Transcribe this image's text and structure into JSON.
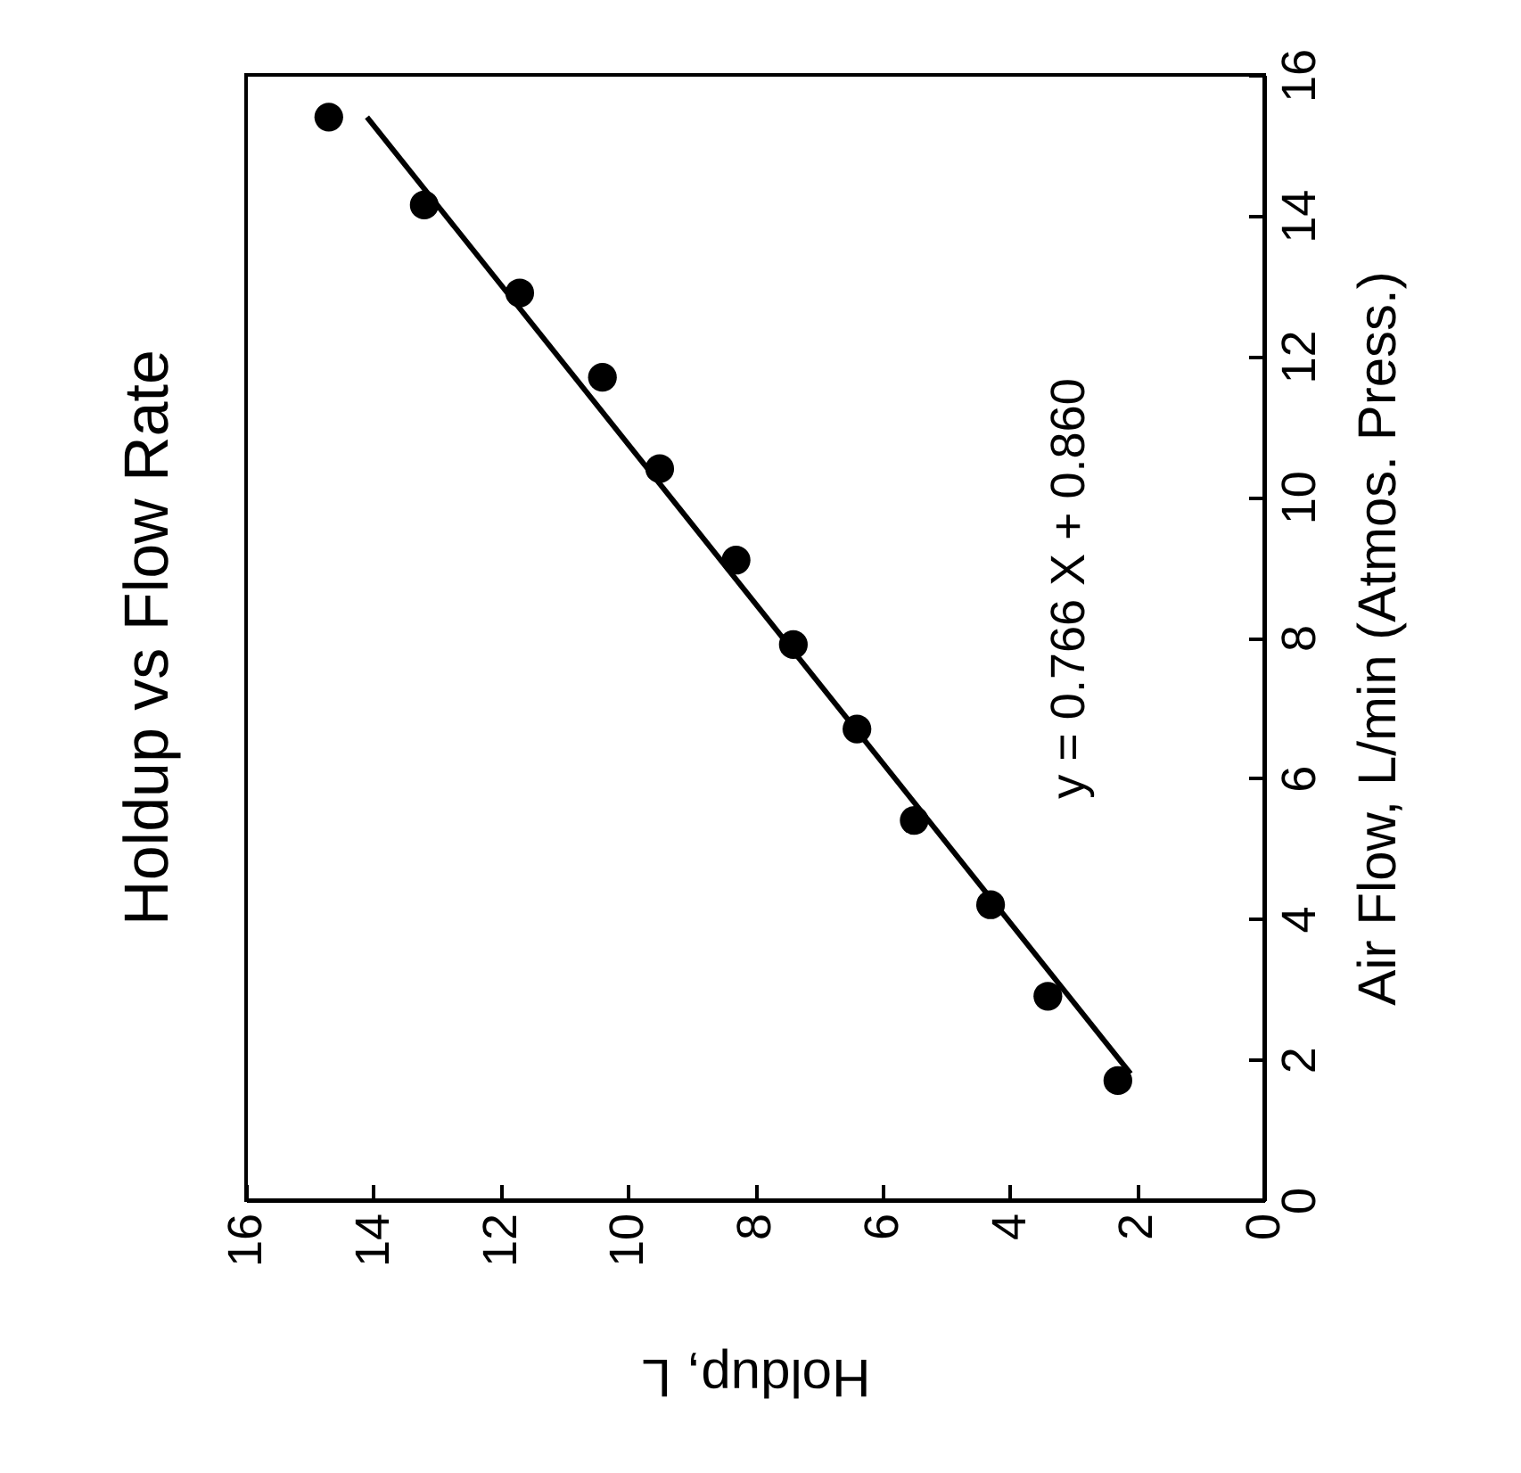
{
  "chart_data": {
    "type": "scatter",
    "title": "Holdup vs Flow Rate",
    "xlabel": "Holdup, L",
    "ylabel": "Air Flow, L/min (Atmos. Press.)",
    "x": [
      14.7,
      13.2,
      11.7,
      10.4,
      9.5,
      8.3,
      7.4,
      6.4,
      5.5,
      4.3,
      3.4,
      2.3
    ],
    "series": [
      {
        "type": "scatter",
        "color": "#000000",
        "marker": "circle",
        "values": [
          15.4,
          14.15,
          12.9,
          11.7,
          10.4,
          9.1,
          7.9,
          6.7,
          5.4,
          4.2,
          2.9,
          1.7
        ]
      },
      {
        "type": "line",
        "color": "#000000",
        "line_style": "solid",
        "x": [
          14.1,
          2.1
        ],
        "values": [
          15.4,
          1.8
        ]
      }
    ],
    "annotations": [
      "y = 0.766 X + 0.860"
    ],
    "xlim": [
      16,
      0
    ],
    "ylim": [
      0,
      16
    ],
    "xticks": [
      0,
      2,
      4,
      6,
      8,
      10,
      12,
      14,
      16
    ],
    "yticks": [
      0,
      2,
      4,
      6,
      8,
      10,
      12,
      14,
      16
    ],
    "grid": false
  }
}
